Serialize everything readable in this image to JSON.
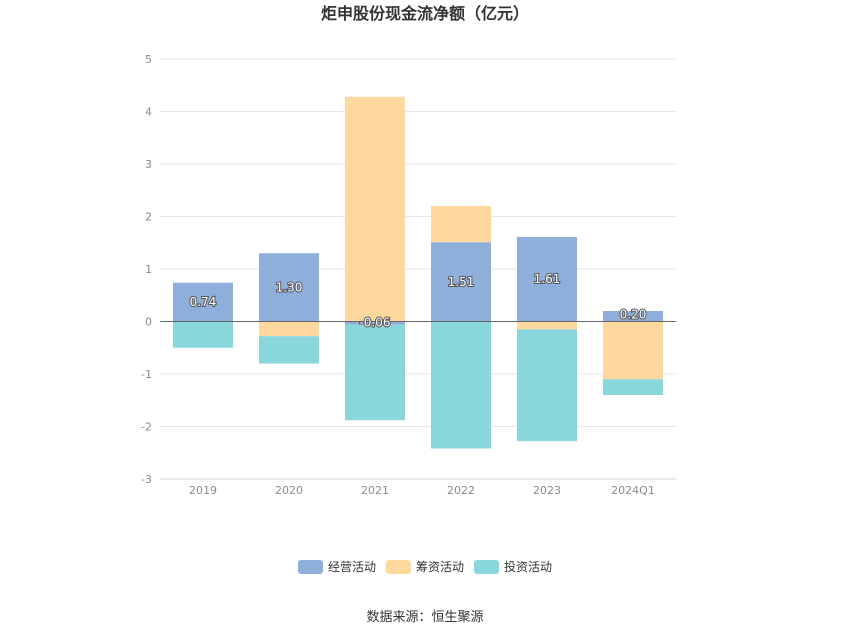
{
  "chart_data": {
    "type": "bar",
    "stacked": true,
    "title": "炬申股份现金流净额（亿元）",
    "unit": "亿元",
    "categories": [
      "2019",
      "2020",
      "2021",
      "2022",
      "2023",
      "2024Q1"
    ],
    "series": [
      {
        "name": "经营活动",
        "color": "#8eaedb",
        "values": [
          0.74,
          1.3,
          -0.06,
          1.51,
          1.61,
          0.2
        ],
        "labels": [
          "0.74",
          "1.30",
          "-0.06",
          "1.51",
          "1.61",
          "0.20"
        ]
      },
      {
        "name": "筹资活动",
        "color": "#fed89c",
        "values": [
          0.0,
          -0.28,
          4.28,
          0.69,
          -0.15,
          -1.1
        ]
      },
      {
        "name": "投资活动",
        "color": "#89d7da",
        "values": [
          -0.5,
          -0.52,
          -1.82,
          -2.42,
          -2.13,
          -0.3
        ]
      }
    ],
    "y_ticks": [
      "5",
      "4",
      "3",
      "2",
      "1",
      "0",
      "-1",
      "-2",
      "-3"
    ],
    "ylim": [
      -3,
      5
    ],
    "grid": true,
    "legend_position": "bottom"
  },
  "source": "数据来源：恒生聚源"
}
